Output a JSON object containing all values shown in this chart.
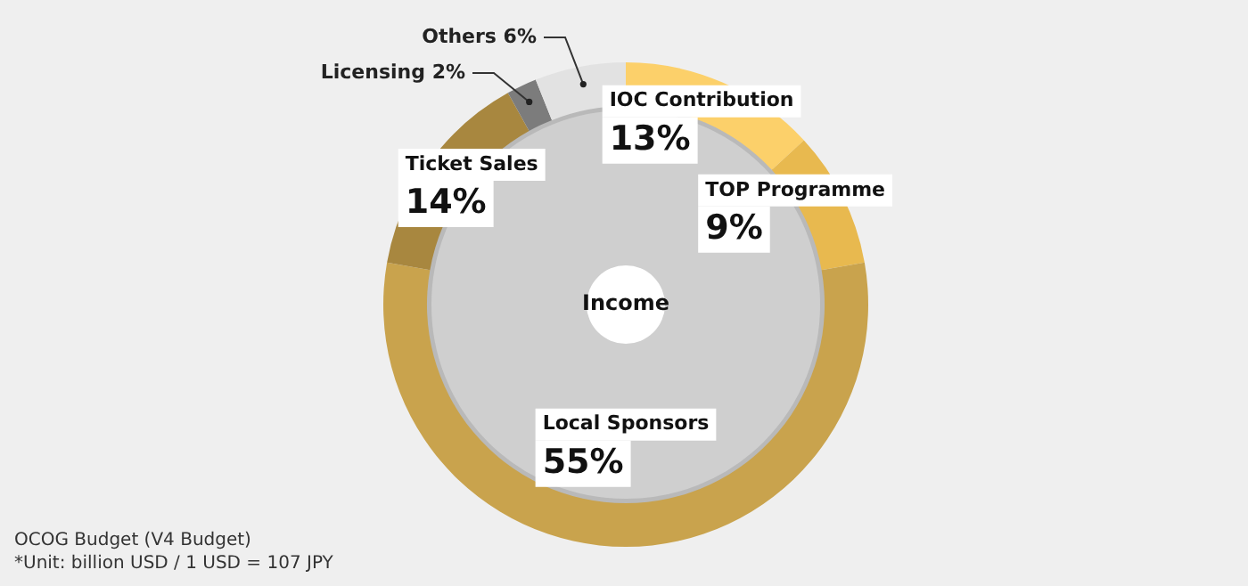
{
  "chart_data": {
    "type": "donut",
    "title": "Income",
    "categories": [
      "IOC Contribution",
      "TOP Programme",
      "Local Sponsors",
      "Ticket Sales",
      "Licensing",
      "Others"
    ],
    "values": [
      13,
      9,
      55,
      14,
      2,
      6
    ],
    "colors": [
      "#fcd06a",
      "#e8b94f",
      "#c9a34d",
      "#a8873f",
      "#7c7c7c",
      "#e2e2e2"
    ],
    "value_labels": [
      "13%",
      "9%",
      "55%",
      "14%",
      "2%",
      "6%"
    ],
    "legend": false,
    "annotations": [
      "OCOG Budget (V4 Budget)",
      "*Unit: billion USD / 1 USD = 107 JPY"
    ]
  }
}
